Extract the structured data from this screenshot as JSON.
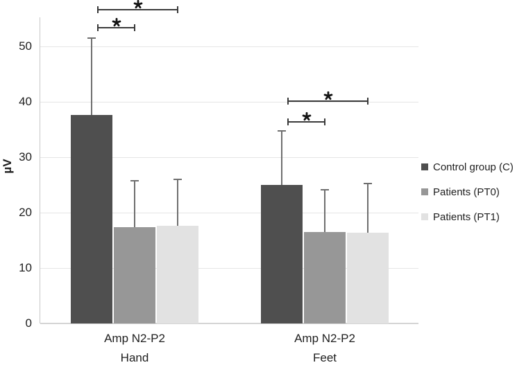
{
  "chart_data": {
    "type": "bar",
    "title": "",
    "ylabel": "µV",
    "ylim": [
      0,
      55
    ],
    "yticks": [
      0,
      10,
      20,
      30,
      40,
      50
    ],
    "grid": true,
    "legend_position": "right",
    "categories": [
      {
        "line1": "Amp N2-P2",
        "line2": "Hand"
      },
      {
        "line1": "Amp N2-P2",
        "line2": "Feet"
      }
    ],
    "series": [
      {
        "name": "Control group (C)",
        "color": "#4F4F4F",
        "values": [
          37.6,
          25.0
        ],
        "error_upper": [
          13.9,
          9.8
        ]
      },
      {
        "name": "Patients (PT0)",
        "color": "#979797",
        "values": [
          17.4,
          16.5
        ],
        "error_upper": [
          8.4,
          7.6
        ]
      },
      {
        "name": "Patients (PT1)",
        "color": "#E2E2E2",
        "values": [
          17.6,
          16.4
        ],
        "error_upper": [
          8.4,
          8.9
        ]
      }
    ],
    "significance": [
      {
        "category": 0,
        "pair": [
          "Control group (C)",
          "Patients (PT0)"
        ],
        "label": "*"
      },
      {
        "category": 0,
        "pair": [
          "Control group (C)",
          "Patients (PT1)"
        ],
        "label": "*"
      },
      {
        "category": 1,
        "pair": [
          "Control group (C)",
          "Patients (PT0)"
        ],
        "label": "*"
      },
      {
        "category": 1,
        "pair": [
          "Control group (C)",
          "Patients (PT1)"
        ],
        "label": "*"
      }
    ]
  },
  "colors": {
    "background": "#FFFFFF",
    "gridline": "#E5E5E5",
    "baseline": "#D4D4D4",
    "axis_line": "#C8C8C8",
    "error_bar": "#6E6E6E",
    "bracket": "#3A3A3A",
    "asterisk": "#141414",
    "text": "#1E1E1E"
  }
}
